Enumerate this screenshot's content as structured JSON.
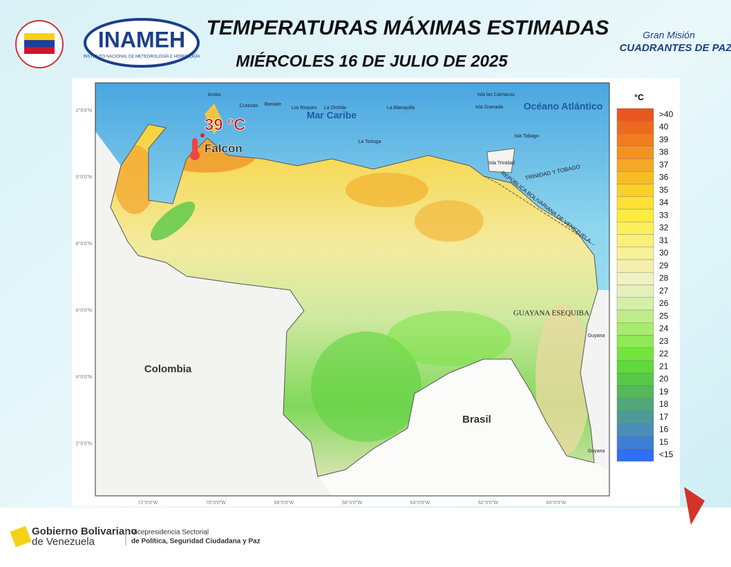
{
  "header": {
    "title": "TEMPERATURAS MÁXIMAS ESTIMADAS",
    "subtitle": "MIÉRCOLES 16 DE JULIO DE 2025",
    "logo_left": "INAMEH",
    "logo_left_caption": "INSTITUTO NACIONAL DE METEOROLOGÍA E HIDROLOGÍA",
    "logo_right_top": "Gran Misión",
    "logo_right_main": "CUADRANTES DE PAZ"
  },
  "map": {
    "regions": [
      "Mar Caribe",
      "Océano Atlántico",
      "Colombia",
      "Brasil",
      "GUAYANA ESEQUIBA"
    ],
    "borders": [
      "TRINIDAD Y TOBAGO",
      "REPÚBLICA BOLIVARIANA DE VENEZUELA"
    ],
    "islands": [
      "Aruba",
      "Curazao",
      "Bonaire",
      "Los Roques",
      "La Orchila",
      "La Blanquilla",
      "La Tortuga",
      "Isla las Carriacou",
      "Isla Granada",
      "Isla Tobago",
      "Isla Trinidad",
      "Guyana",
      "Guyana"
    ],
    "highlight": {
      "value": "39 ºC",
      "place": "Falcón"
    },
    "lat_labels": [
      "2°0'0\"N",
      "0°0'0\"N",
      "8°0'0\"N",
      "6°0'0\"N",
      "4°0'0\"N",
      "2°0'0\"N"
    ],
    "lon_labels": [
      "72°0'0\"W",
      "70°0'0\"W",
      "68°0'0\"W",
      "66°0'0\"W",
      "64°0'0\"W",
      "62°0'0\"W",
      "60°0'0\"W"
    ]
  },
  "legend": {
    "unit": "°C",
    "items": [
      {
        "label": ">40",
        "color": "#e8581e"
      },
      {
        "label": "40",
        "color": "#ec6a1f"
      },
      {
        "label": "39",
        "color": "#f07d20"
      },
      {
        "label": "38",
        "color": "#f39222"
      },
      {
        "label": "37",
        "color": "#f5a823"
      },
      {
        "label": "36",
        "color": "#f8bd24"
      },
      {
        "label": "35",
        "color": "#fbd028"
      },
      {
        "label": "34",
        "color": "#fde134"
      },
      {
        "label": "33",
        "color": "#fdeb3f"
      },
      {
        "label": "32",
        "color": "#fbef5c"
      },
      {
        "label": "31",
        "color": "#f9f07a"
      },
      {
        "label": "30",
        "color": "#f7f098"
      },
      {
        "label": "29",
        "color": "#f5efae"
      },
      {
        "label": "28",
        "color": "#eff2c1"
      },
      {
        "label": "27",
        "color": "#e4f1bb"
      },
      {
        "label": "26",
        "color": "#d3f0a6"
      },
      {
        "label": "25",
        "color": "#bfed8c"
      },
      {
        "label": "24",
        "color": "#a8eb6e"
      },
      {
        "label": "23",
        "color": "#8fe855"
      },
      {
        "label": "22",
        "color": "#74e43f"
      },
      {
        "label": "21",
        "color": "#5fd93b"
      },
      {
        "label": "20",
        "color": "#57c947"
      },
      {
        "label": "19",
        "color": "#55b85a"
      },
      {
        "label": "18",
        "color": "#52a77a"
      },
      {
        "label": "17",
        "color": "#4d9b98"
      },
      {
        "label": "16",
        "color": "#4a8eb8"
      },
      {
        "label": "15",
        "color": "#3d7fd6"
      },
      {
        "label": "<15",
        "color": "#2f6ff0"
      }
    ]
  },
  "footer": {
    "gov_line1": "Gobierno Bolivariano",
    "gov_line2": "de Venezuela",
    "vice_line1": "Vicepresidencia Sectorial",
    "vice_line2": "de Política, Seguridad Ciudadana y Paz"
  }
}
